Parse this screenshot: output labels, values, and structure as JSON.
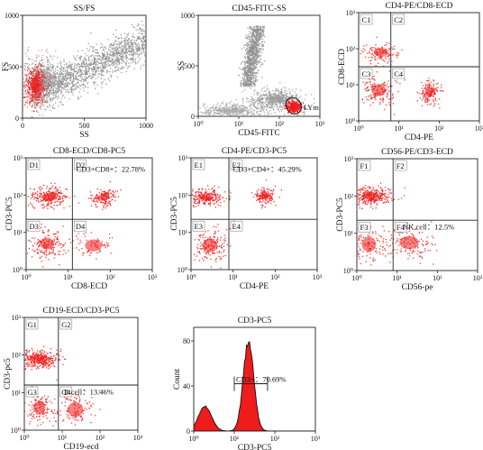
{
  "chart_data": [
    {
      "id": "p1",
      "type": "scatter",
      "title": "SS/FS",
      "xlabel": "SS",
      "ylabel": "FS",
      "log": false,
      "xticks": [
        "0",
        "500",
        "1000"
      ],
      "yticks": [
        "0",
        "500",
        "1000"
      ],
      "xlim": [
        0,
        1000
      ],
      "ylim": [
        0,
        1000
      ],
      "populations": [
        {
          "name": "gray",
          "color": "#8f8f8f",
          "kind": "band",
          "from": [
            70,
            230
          ],
          "to": [
            1000,
            750
          ],
          "width": 260,
          "n": 1600
        },
        {
          "name": "gray2",
          "color": "#9a9a9a",
          "kind": "cluster",
          "cx": 160,
          "cy": 380,
          "sx": 90,
          "sy": 120,
          "n": 500
        },
        {
          "name": "lymphocytes",
          "color": "#ee1c1c",
          "kind": "cluster",
          "cx": 105,
          "cy": 320,
          "sx": 45,
          "sy": 95,
          "n": 420
        }
      ],
      "annotations": []
    },
    {
      "id": "p2",
      "type": "scatter",
      "title": "CD45-FITC-SS",
      "xlabel": "CD45-FITC",
      "ylabel": "SS",
      "log": "x",
      "xticks": [
        "10⁰",
        "10¹",
        "10²",
        "10³"
      ],
      "yticks": [
        "0",
        "500",
        "1000"
      ],
      "xlim": [
        0,
        3
      ],
      "ylim": [
        0,
        1000
      ],
      "populations": [
        {
          "name": "granulocytes",
          "color": "#8f8f8f",
          "kind": "band",
          "from": [
            1.2,
            300
          ],
          "to": [
            1.45,
            900
          ],
          "width": 0.28,
          "n": 1000
        },
        {
          "name": "monocytes",
          "color": "#9a9a9a",
          "kind": "cluster",
          "cx": 1.9,
          "cy": 170,
          "sx": 0.3,
          "sy": 50,
          "n": 500
        },
        {
          "name": "debris",
          "color": "#a5a5a5",
          "kind": "cluster",
          "cx": 0.8,
          "cy": 60,
          "sx": 0.45,
          "sy": 40,
          "n": 400
        },
        {
          "name": "lymphocytes",
          "color": "#ee1c1c",
          "kind": "cluster",
          "cx": 2.35,
          "cy": 100,
          "sx": 0.1,
          "sy": 30,
          "n": 320
        }
      ],
      "annotations": [
        {
          "text": "LYm",
          "ax": 2.55,
          "ay": 100
        }
      ],
      "gate": {
        "cx": 2.35,
        "cy": 105,
        "rx": 0.18,
        "ry": 85
      }
    },
    {
      "id": "p3",
      "type": "scatter",
      "title": "CD4-PE/CD8-ECD",
      "xlabel": "CD4-PE",
      "ylabel": "CD8-ECD",
      "log": "xy",
      "xticks": [
        "10⁰",
        "10¹",
        "10²",
        "10³"
      ],
      "yticks": [
        "10⁰",
        "10¹",
        "10²",
        "10³"
      ],
      "xlim": [
        0,
        3
      ],
      "ylim": [
        0,
        3
      ],
      "quadrant": {
        "x": 0.8,
        "y": 1.5
      },
      "quadrant_labels": [
        "C1",
        "C2",
        "C3",
        "C4"
      ],
      "populations": [
        {
          "name": "CD8+",
          "color": "#ee1c1c",
          "kind": "cluster",
          "cx": 0.55,
          "cy": 1.9,
          "sx": 0.22,
          "sy": 0.15,
          "n": 120
        },
        {
          "name": "double-neg",
          "color": "#ee1c1c",
          "kind": "cluster",
          "cx": 0.5,
          "cy": 0.85,
          "sx": 0.22,
          "sy": 0.2,
          "n": 150
        },
        {
          "name": "CD4+",
          "color": "#ee1c1c",
          "kind": "cluster",
          "cx": 1.75,
          "cy": 0.8,
          "sx": 0.13,
          "sy": 0.18,
          "n": 150
        }
      ],
      "annotations": []
    },
    {
      "id": "p4",
      "type": "scatter",
      "title": "CD8-ECD/CD8-PC5",
      "xlabel": "CD8-ECD",
      "ylabel": "CD3-PC5",
      "log": "xy",
      "xticks": [
        "10⁰",
        "10¹",
        "10²",
        "10³"
      ],
      "yticks": [
        "10⁰",
        "10¹",
        "10²",
        "10³"
      ],
      "xlim": [
        0,
        3
      ],
      "ylim": [
        0,
        3
      ],
      "quadrant": {
        "x": 1.1,
        "y": 1.35
      },
      "quadrant_labels": [
        "D1",
        "D2",
        "D3",
        "D4"
      ],
      "populations": [
        {
          "name": "CD3+CD8-",
          "color": "#ee1c1c",
          "kind": "cluster",
          "cx": 0.55,
          "cy": 1.95,
          "sx": 0.22,
          "sy": 0.14,
          "n": 260
        },
        {
          "name": "CD3+CD8+",
          "color": "#ee1c1c",
          "kind": "cluster",
          "cx": 1.85,
          "cy": 1.95,
          "sx": 0.15,
          "sy": 0.13,
          "n": 160
        },
        {
          "name": "CD3-CD8-",
          "color": "#ee1c1c",
          "kind": "cluster",
          "cx": 0.5,
          "cy": 0.7,
          "sx": 0.2,
          "sy": 0.2,
          "n": 170
        },
        {
          "name": "CD3-CD8+",
          "color": "#ee1c1c",
          "kind": "cluster",
          "cx": 1.6,
          "cy": 0.65,
          "sx": 0.25,
          "sy": 0.2,
          "n": 70
        }
      ],
      "annotations": [
        {
          "text": "CD3+CD8+：22.78%",
          "ax": 1.15,
          "ay": 2.72
        }
      ]
    },
    {
      "id": "p5",
      "type": "scatter",
      "title": "CD4-PE/CD3-PC5",
      "xlabel": "CD4-PE",
      "ylabel": "CD3-PC5",
      "log": "xy",
      "xticks": [
        "10⁰",
        "10¹",
        "10²",
        "10³"
      ],
      "yticks": [
        "10⁰",
        "10¹",
        "10²",
        "10³"
      ],
      "xlim": [
        0,
        3
      ],
      "ylim": [
        0,
        3
      ],
      "quadrant": {
        "x": 0.9,
        "y": 1.35
      },
      "quadrant_labels": [
        "E1",
        "E2",
        "E3",
        "E4"
      ],
      "populations": [
        {
          "name": "CD3+CD4-",
          "color": "#ee1c1c",
          "kind": "cluster",
          "cx": 0.35,
          "cy": 1.95,
          "sx": 0.22,
          "sy": 0.12,
          "n": 230
        },
        {
          "name": "CD3+CD4+",
          "color": "#ee1c1c",
          "kind": "cluster",
          "cx": 1.75,
          "cy": 1.98,
          "sx": 0.11,
          "sy": 0.12,
          "n": 160
        },
        {
          "name": "CD3-CD4-",
          "color": "#ee1c1c",
          "kind": "cluster",
          "cx": 0.45,
          "cy": 0.65,
          "sx": 0.22,
          "sy": 0.22,
          "n": 170
        }
      ],
      "annotations": [
        {
          "text": "CD3+CD4+：45.29%",
          "ax": 0.95,
          "ay": 2.72
        }
      ]
    },
    {
      "id": "p6",
      "type": "scatter",
      "title": "CD56-PE/CD3-ECD",
      "xlabel": "CD56-pe",
      "ylabel": "CD3-PC5",
      "log": "xy",
      "xticks": [
        "10⁰",
        "10¹",
        "10²",
        "10³"
      ],
      "yticks": [
        "10⁰",
        "10¹",
        "10²",
        "10³"
      ],
      "xlim": [
        0,
        3
      ],
      "ylim": [
        0,
        3
      ],
      "quadrant": {
        "x": 0.9,
        "y": 1.35
      },
      "quadrant_labels": [
        "F1",
        "F2",
        "F3",
        "F4"
      ],
      "populations": [
        {
          "name": "CD3+",
          "color": "#ee1c1c",
          "kind": "cluster",
          "cx": 0.35,
          "cy": 2.0,
          "sx": 0.25,
          "sy": 0.13,
          "n": 320
        },
        {
          "name": "CD3-CD56-",
          "color": "#ee1c1c",
          "kind": "cluster",
          "cx": 0.3,
          "cy": 0.7,
          "sx": 0.22,
          "sy": 0.25,
          "n": 120
        },
        {
          "name": "NK",
          "color": "#ee1c1c",
          "kind": "cluster",
          "cx": 1.3,
          "cy": 0.75,
          "sx": 0.3,
          "sy": 0.22,
          "n": 130
        }
      ],
      "annotations": [
        {
          "text": "NK cell：12.5%",
          "ax": 1.1,
          "ay": 1.2
        }
      ]
    },
    {
      "id": "p7",
      "type": "scatter",
      "title": "CD19-ECD/CD3-PC5",
      "xlabel": "CD19-ecd",
      "ylabel": "CD3-pc5",
      "log": "xy",
      "xticks": [
        "10⁰",
        "10¹",
        "10²",
        "10³"
      ],
      "yticks": [
        "10⁰",
        "10¹",
        "10²",
        "10³"
      ],
      "xlim": [
        0,
        3
      ],
      "ylim": [
        0,
        3
      ],
      "quadrant": {
        "x": 0.9,
        "y": 1.2
      },
      "quadrant_labels": [
        "G1",
        "G2",
        "G3",
        "G4"
      ],
      "populations": [
        {
          "name": "CD3+",
          "color": "#ee1c1c",
          "kind": "cluster",
          "cx": 0.4,
          "cy": 1.9,
          "sx": 0.25,
          "sy": 0.13,
          "n": 320
        },
        {
          "name": "CD3-CD19-",
          "color": "#ee1c1c",
          "kind": "cluster",
          "cx": 0.4,
          "cy": 0.6,
          "sx": 0.2,
          "sy": 0.22,
          "n": 120
        },
        {
          "name": "B",
          "color": "#ee1c1c",
          "kind": "cluster",
          "cx": 1.35,
          "cy": 0.55,
          "sx": 0.25,
          "sy": 0.25,
          "n": 110
        }
      ],
      "annotations": [
        {
          "text": "B cell：13.46%",
          "ax": 1.0,
          "ay": 1.05
        }
      ]
    },
    {
      "id": "p8",
      "type": "area",
      "title": "CD3-PC5",
      "xlabel": "CD3-PC5",
      "ylabel": "Count",
      "log": "x",
      "xticks": [
        "10⁰",
        "10¹",
        "10²",
        "10³"
      ],
      "yticks": [
        "0",
        "40",
        "80"
      ],
      "xlim": [
        0,
        3
      ],
      "ylim": [
        0,
        92
      ],
      "peaks": [
        {
          "x": 0.28,
          "height": 22,
          "width": 0.16
        },
        {
          "x": 1.35,
          "height": 80,
          "width": 0.13
        }
      ],
      "gate": {
        "from": 1.0,
        "to": 1.82,
        "level": 42
      },
      "annotations": [
        {
          "text": "CD3+：70.69%",
          "ax": 1.0,
          "ay": 47
        }
      ]
    }
  ]
}
